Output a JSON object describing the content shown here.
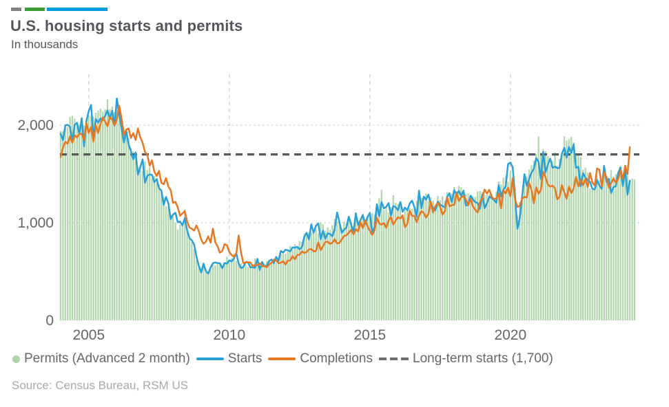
{
  "header": {
    "title": "U.S. housing starts and permits",
    "subtitle": "In thousands",
    "brand_colors": {
      "gray": "#808285",
      "green": "#3f9c35",
      "blue": "#009cde"
    }
  },
  "footer": {
    "source": "Source: Census Bureau, RSM US"
  },
  "chart_data": {
    "type": "bar+line combo, monthly time series",
    "title": "U.S. housing starts and permits",
    "ylabel": "In thousands",
    "x_range": [
      "2004-01",
      "2024-06"
    ],
    "x_frequency": "monthly",
    "ylim": [
      0,
      2520
    ],
    "grid": "dotted horizontal at 1000/2000, dashed vertical at year ticks",
    "legend_position": "bottom",
    "x_ticks": [
      {
        "label": "2005",
        "month_index": 12
      },
      {
        "label": "2010",
        "month_index": 72
      },
      {
        "label": "2015",
        "month_index": 132
      },
      {
        "label": "2020",
        "month_index": 192
      }
    ],
    "y_ticks": [
      {
        "value": 0,
        "label": "0",
        "gridline": false
      },
      {
        "value": 1000,
        "label": "1,000",
        "gridline": true
      },
      {
        "value": 2000,
        "label": "2,000",
        "gridline": true
      }
    ],
    "reference_line": {
      "label": "Long-term starts (1,700)",
      "value": 1700,
      "color": "#55575a",
      "legend_marker_color": "#6d6e71",
      "style": "dashed"
    },
    "series": [
      {
        "name": "Permits (Advanced 2 month)",
        "slug": "permits",
        "type": "bar",
        "color": "#b2d7ae",
        "legend_marker_color": "#aed3a8",
        "start_month": "2004-01",
        "values": [
          1940,
          1937,
          2008,
          1981,
          2085,
          2096,
          2066,
          1998,
          2003,
          2033,
          1995,
          2069,
          2100,
          2089,
          2085,
          2128,
          2148,
          2167,
          2138,
          2161,
          2263,
          2164,
          2189,
          2135,
          2207,
          2161,
          2086,
          1973,
          1946,
          1869,
          1763,
          1730,
          1680,
          1574,
          1540,
          1531,
          1627,
          1541,
          1569,
          1457,
          1478,
          1413,
          1389,
          1322,
          1261,
          1170,
          1162,
          1080,
          1061,
          1002,
          932,
          982,
          978,
          1138,
          937,
          857,
          805,
          730,
          616,
          547,
          531,
          550,
          511,
          498,
          518,
          570,
          564,
          580,
          575,
          551,
          584,
          653,
          622,
          637,
          685,
          610,
          583,
          583,
          559,
          571,
          547,
          550,
          544,
          635,
          563,
          534,
          574,
          563,
          609,
          617,
          597,
          625,
          589,
          631,
          681,
          680,
          682,
          715,
          764,
          723,
          780,
          760,
          811,
          801,
          890,
          868,
          900,
          905,
          904,
          939,
          890,
          1005,
          985,
          918,
          954,
          926,
          974,
          1039,
          1017,
          986,
          945,
          1014,
          997,
          1059,
          1005,
          963,
          1057,
          1003,
          1031,
          1092,
          1035,
          1060,
          1060,
          1098,
          1086,
          1140,
          1250,
          1337,
          1130,
          1161,
          1105,
          1161,
          1282,
          1204,
          1193,
          1162,
          1077,
          1130,
          1136,
          1153,
          1144,
          1152,
          1225,
          1260,
          1255,
          1266,
          1300,
          1219,
          1260,
          1228,
          1168,
          1275,
          1230,
          1272,
          1225,
          1316,
          1303,
          1300,
          1366,
          1323,
          1377,
          1364,
          1301,
          1292,
          1303,
          1249,
          1270,
          1265,
          1322,
          1326,
          1316,
          1287,
          1288,
          1290,
          1299,
          1232,
          1317,
          1425,
          1391,
          1461,
          1474,
          1420,
          1536,
          1438,
          1356,
          1066,
          1212,
          1258,
          1483,
          1476,
          1545,
          1589,
          1635,
          1704,
          1883,
          1720,
          1755,
          1733,
          1683,
          1594,
          1630,
          1721,
          1586,
          1653,
          1717,
          1885,
          1841,
          1857,
          1879,
          1823,
          1708,
          1696,
          1674,
          1542,
          1564,
          1512,
          1351,
          1337,
          1354,
          1482,
          1437,
          1417,
          1496,
          1441,
          1443,
          1541,
          1471,
          1498,
          1467,
          1493,
          1489,
          1523,
          1485,
          1440,
          1452,
          1446
        ]
      },
      {
        "name": "Starts",
        "slug": "starts",
        "type": "line",
        "color": "#29a0d8",
        "legend_marker_color": "#29a0d8",
        "start_month": "2004-01",
        "values": [
          1911,
          1846,
          1998,
          2003,
          1981,
          1828,
          2002,
          2024,
          1905,
          2072,
          1782,
          2042,
          2144,
          2207,
          1864,
          2061,
          2025,
          2068,
          2054,
          2095,
          2151,
          2065,
          2147,
          1994,
          2273,
          2119,
          1969,
          1821,
          1942,
          1802,
          1737,
          1650,
          1720,
          1491,
          1570,
          1649,
          1409,
          1480,
          1495,
          1490,
          1415,
          1448,
          1354,
          1330,
          1183,
          1264,
          1197,
          1037,
          1084,
          1103,
          1005,
          1013,
          973,
          1046,
          923,
          844,
          820,
          777,
          652,
          560,
          490,
          582,
          505,
          478,
          540,
          585,
          594,
          586,
          585,
          534,
          588,
          581,
          614,
          604,
          636,
          687,
          583,
          536,
          546,
          599,
          594,
          543,
          545,
          539,
          630,
          517,
          600,
          554,
          561,
          608,
          623,
          585,
          650,
          610,
          711,
          694,
          723,
          718,
          706,
          747,
          744,
          754,
          728,
          749,
          854,
          897,
          828,
          983,
          898,
          969,
          994,
          831,
          920,
          835,
          891,
          885,
          863,
          936,
          1105,
          1010,
          897,
          928,
          950,
          1063,
          984,
          893,
          1098,
          977,
          1028,
          1079,
          989,
          1057,
          1101,
          900,
          954,
          1190,
          1067,
          1213,
          1147,
          1164,
          1202,
          1073,
          1171,
          1160,
          1128,
          1213,
          1113,
          1155,
          1128,
          1195,
          1226,
          1164,
          1062,
          1328,
          1149,
          1268,
          1236,
          1288,
          1189,
          1154,
          1129,
          1217,
          1185,
          1172,
          1158,
          1265,
          1303,
          1210,
          1334,
          1290,
          1327,
          1276,
          1329,
          1177,
          1184,
          1279,
          1237,
          1211,
          1202,
          1142,
          1291,
          1149,
          1199,
          1267,
          1253,
          1233,
          1204,
          1386,
          1269,
          1340,
          1371,
          1601,
          1617,
          1567,
          1269,
          938,
          1046,
          1265,
          1497,
          1377,
          1448,
          1514,
          1551,
          1661,
          1625,
          1447,
          1725,
          1514,
          1594,
          1657,
          1562,
          1576,
          1559,
          1563,
          1706,
          1768,
          1666,
          1777,
          1716,
          1803,
          1562,
          1575,
          1371,
          1508,
          1465,
          1434,
          1419,
          1348,
          1340,
          1436,
          1380,
          1348,
          1583,
          1418,
          1451,
          1305,
          1363,
          1376,
          1510,
          1568,
          1376,
          1546,
          1287,
          1430
        ]
      },
      {
        "name": "Completions",
        "slug": "completions",
        "type": "line",
        "color": "#e87722",
        "legend_marker_color": "#e87722",
        "start_month": "2004-01",
        "values": [
          1672,
          1771,
          1829,
          1810,
          1885,
          1820,
          1896,
          1873,
          1911,
          1910,
          1846,
          2022,
          1918,
          1981,
          1832,
          2001,
          1919,
          2012,
          2078,
          2035,
          1989,
          2083,
          2056,
          1998,
          2058,
          2198,
          2073,
          1899,
          1954,
          1966,
          1868,
          1919,
          1848,
          1966,
          1875,
          1820,
          1726,
          1697,
          1584,
          1640,
          1524,
          1478,
          1532,
          1409,
          1394,
          1458,
          1370,
          1333,
          1203,
          1215,
          1157,
          1072,
          1096,
          1119,
          1014,
          951,
          939,
          920,
          972,
          914,
          829,
          785,
          806,
          861,
          796,
          940,
          802,
          757,
          693,
          711,
          782,
          768,
          700,
          670,
          650,
          687,
          870,
          696,
          587,
          593,
          596,
          593,
          553,
          568,
          565,
          585,
          554,
          554,
          546,
          572,
          591,
          623,
          614,
          585,
          590,
          605,
          572,
          611,
          614,
          658,
          625,
          671,
          672,
          707,
          690,
          700,
          727,
          730,
          707,
          711,
          800,
          720,
          760,
          802,
          806,
          784,
          795,
          831,
          787,
          794,
          829,
          864,
          872,
          898,
          928,
          880,
          935,
          911,
          1006,
          946,
          1024,
          963,
          919,
          875,
          922,
          1050,
          994,
          980,
          997,
          948,
          1023,
          1060,
          980,
          1024,
          1057,
          1044,
          1076,
          954,
          988,
          1125,
          1070,
          1071,
          1006,
          1072,
          1118,
          1102,
          1052,
          1090,
          1216,
          1104,
          1173,
          1204,
          1163,
          1083,
          1117,
          1256,
          1168,
          1180,
          1183,
          1307,
          1222,
          1263,
          1275,
          1238,
          1179,
          1245,
          1167,
          1134,
          1104,
          1210,
          1252,
          1340,
          1299,
          1337,
          1267,
          1244,
          1247,
          1299,
          1148,
          1332,
          1299,
          1359,
          1271,
          1457,
          1239,
          1161,
          1174,
          1247,
          1265,
          1258,
          1408,
          1337,
          1198,
          1365,
          1296,
          1335,
          1525,
          1464,
          1392,
          1370,
          1380,
          1354,
          1240,
          1266,
          1386,
          1311,
          1246,
          1371,
          1303,
          1351,
          1469,
          1374,
          1440,
          1383,
          1450,
          1367,
          1509,
          1411,
          1382,
          1557,
          1542,
          1375,
          1518,
          1468,
          1362,
          1406,
          1453,
          1410,
          1447,
          1541,
          1449,
          1583,
          1497,
          1775
        ]
      }
    ]
  }
}
